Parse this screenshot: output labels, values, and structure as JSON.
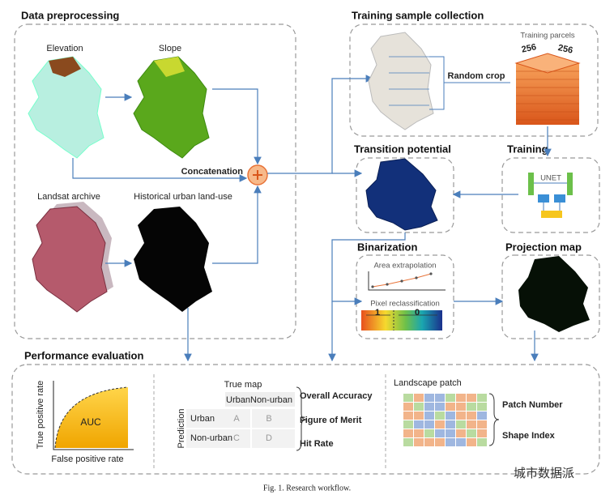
{
  "data_preprocessing": {
    "title": "Data preprocessing",
    "elevation": "Elevation",
    "slope": "Slope",
    "concatenation": "Concatenation",
    "landsat": "Landsat archive",
    "urban": "Historical urban land-use"
  },
  "training_sample": {
    "title": "Training sample collection",
    "parcels": "Training parcels",
    "size_a": "256",
    "size_b": "256",
    "random_crop": "Random crop"
  },
  "transition": {
    "title": "Transition potential"
  },
  "training": {
    "title": "Training",
    "model": "UNET"
  },
  "binarization": {
    "title": "Binarization",
    "extrapolation": "Area extrapolation",
    "reclassification": "Pixel reclassification",
    "class_1": "1",
    "class_0": "0"
  },
  "projection": {
    "title": "Projection map"
  },
  "evaluation": {
    "title": "Performance evaluation",
    "auc": "AUC",
    "y_label": "True positive rate",
    "x_label": "False positive rate",
    "true_map": "True map",
    "prediction": "Prediction",
    "columns": [
      "Urban",
      "Non-urban"
    ],
    "rows": [
      "Urban",
      "Non-urban"
    ],
    "cells": [
      "A",
      "B",
      "C",
      "D"
    ],
    "metrics": [
      "Overall Accuracy",
      "Figure of Merit",
      "Hit Rate"
    ],
    "landscape": "Landscape patch",
    "landscape_metrics": [
      "Patch Number",
      "Shape Index"
    ]
  },
  "caption": "Fig. 1. Research workflow.",
  "watermark": "城市数据派"
}
